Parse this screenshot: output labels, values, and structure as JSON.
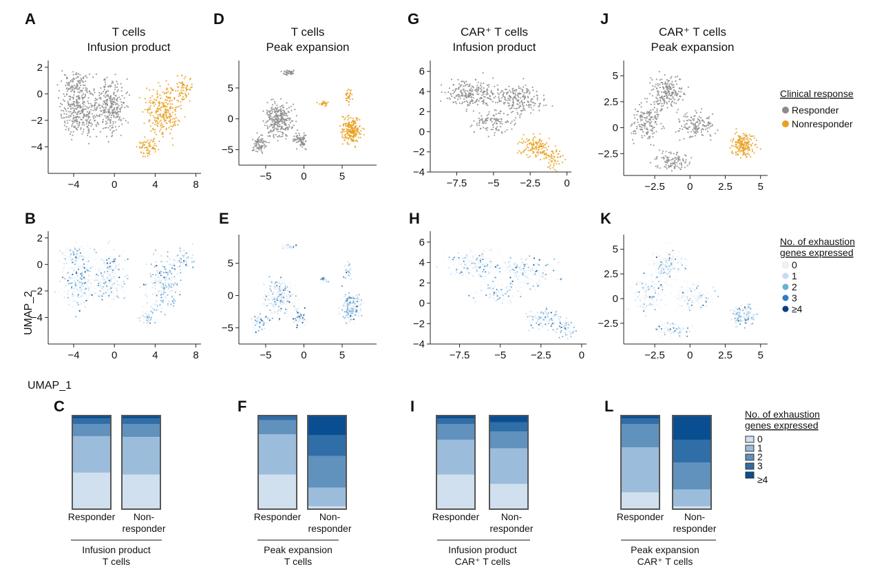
{
  "figure": {
    "umap_axis_labels": {
      "y": "UMAP_2",
      "x": "UMAP_1"
    },
    "clinical_legend": {
      "title": "Clinical response",
      "items": [
        {
          "label": "Responder",
          "color": "#8c8c8c"
        },
        {
          "label": "Nonresponder",
          "color": "#e8a020"
        }
      ]
    },
    "exhaustion_legend_umap": {
      "title_line1": "No. of exhaustion",
      "title_line2": "genes expressed",
      "items": [
        {
          "label": "0",
          "color": "#eef3f8"
        },
        {
          "label": "1",
          "color": "#c6dbef"
        },
        {
          "label": "2",
          "color": "#6baed6"
        },
        {
          "label": "3",
          "color": "#2f7ebf"
        },
        {
          "label": "≥4",
          "color": "#0b3d86"
        }
      ]
    },
    "exhaustion_legend_bars": {
      "title_line1": "No. of exhaustion",
      "title_line2": "genes expressed",
      "items": [
        {
          "label": "0",
          "color": "#d0e0ef"
        },
        {
          "label": "1",
          "color": "#9bbcda"
        },
        {
          "label": "2",
          "color": "#6191bd"
        },
        {
          "label": "3",
          "color": "#2f6ea7"
        },
        {
          "label": "≥4",
          "color": "#0a4e92"
        }
      ]
    }
  },
  "chart_data": [
    {
      "id": "A",
      "type": "scatter",
      "color_mode": "response",
      "title_line1": "T cells",
      "title_line2": "Infusion product",
      "xlim": [
        -6.5,
        8.5
      ],
      "ylim": [
        -6,
        2.3
      ],
      "x_ticks": [
        -4,
        0,
        4,
        8
      ],
      "x_tick_labels": [
        "−4",
        "0",
        "4",
        "8"
      ],
      "y_ticks": [
        2,
        0,
        -2,
        -4
      ],
      "y_tick_labels": [
        "2",
        "0",
        "−2",
        "−4"
      ]
    },
    {
      "id": "D",
      "type": "scatter",
      "color_mode": "response",
      "title_line1": "T cells",
      "title_line2": "Peak expansion",
      "xlim": [
        -8.5,
        9.5
      ],
      "ylim": [
        -7.5,
        9
      ],
      "x_ticks": [
        -5,
        0,
        5
      ],
      "x_tick_labels": [
        "−5",
        "0",
        "5"
      ],
      "y_ticks": [
        5,
        0,
        -5
      ],
      "y_tick_labels": [
        "5",
        "0",
        "−5"
      ]
    },
    {
      "id": "G",
      "type": "scatter",
      "color_mode": "response",
      "title_line1": "CAR⁺ T cells",
      "title_line2": "Infusion product",
      "xlim": [
        -9.3,
        0.3
      ],
      "ylim": [
        -4,
        6.8
      ],
      "x_ticks": [
        -7.5,
        -5,
        -2.5,
        0
      ],
      "x_tick_labels": [
        "−7.5",
        "−5",
        "−2.5",
        "0"
      ],
      "y_ticks": [
        6,
        4,
        2,
        0,
        -2,
        -4
      ],
      "y_tick_labels": [
        "6",
        "4",
        "2",
        "0",
        "−2",
        "−4"
      ]
    },
    {
      "id": "J",
      "type": "scatter",
      "color_mode": "response",
      "title_line1": "CAR⁺ T cells",
      "title_line2": "Peak expansion",
      "xlim": [
        -4.7,
        5.5
      ],
      "ylim": [
        -4.6,
        6.2
      ],
      "x_ticks": [
        -2.5,
        0,
        2.5,
        5
      ],
      "x_tick_labels": [
        "−2.5",
        "0",
        "2.5",
        "5"
      ],
      "y_ticks": [
        5,
        2.5,
        0,
        -2.5
      ],
      "y_tick_labels": [
        "5",
        "2.5",
        "0",
        "−2.5"
      ]
    },
    {
      "id": "B",
      "type": "scatter",
      "color_mode": "exhaustion",
      "xlim": [
        -6.5,
        8.5
      ],
      "ylim": [
        -6,
        2.3
      ],
      "x_ticks": [
        -4,
        0,
        4,
        8
      ],
      "x_tick_labels": [
        "−4",
        "0",
        "4",
        "8"
      ],
      "y_ticks": [
        2,
        0,
        -2,
        -4
      ],
      "y_tick_labels": [
        "2",
        "0",
        "−2",
        "−4"
      ]
    },
    {
      "id": "E",
      "type": "scatter",
      "color_mode": "exhaustion",
      "xlim": [
        -8.5,
        9.5
      ],
      "ylim": [
        -7.5,
        9
      ],
      "x_ticks": [
        -5,
        0,
        5
      ],
      "x_tick_labels": [
        "−5",
        "0",
        "5"
      ],
      "y_ticks": [
        5,
        0,
        -5
      ],
      "y_tick_labels": [
        "5",
        "0",
        "−5"
      ]
    },
    {
      "id": "H",
      "type": "scatter",
      "color_mode": "exhaustion",
      "xlim": [
        -9.3,
        0.3
      ],
      "ylim": [
        -4,
        6.8
      ],
      "x_ticks": [
        -7.5,
        -5,
        -2.5,
        0
      ],
      "x_tick_labels": [
        "−7.5",
        "−5",
        "−2.5",
        "0"
      ],
      "y_ticks": [
        6,
        4,
        2,
        0,
        -2,
        -4
      ],
      "y_tick_labels": [
        "6",
        "4",
        "2",
        "0",
        "−2",
        "−4"
      ]
    },
    {
      "id": "K",
      "type": "scatter",
      "color_mode": "exhaustion",
      "xlim": [
        -4.7,
        5.5
      ],
      "ylim": [
        -4.6,
        6.2
      ],
      "x_ticks": [
        -2.5,
        0,
        2.5,
        5
      ],
      "x_tick_labels": [
        "−2.5",
        "0",
        "2.5",
        "5"
      ],
      "y_ticks": [
        5,
        2.5,
        0,
        -2.5
      ],
      "y_tick_labels": [
        "5",
        "2.5",
        "0",
        "−2.5"
      ]
    },
    {
      "id": "C",
      "type": "bar",
      "stacked": true,
      "categories": [
        "Responder",
        "Non-responder"
      ],
      "category_label_lines": [
        [
          "Responder"
        ],
        [
          "Non-",
          "responder"
        ]
      ],
      "group_label_line1": "Infusion product",
      "group_label_line2": "T cells",
      "series": [
        {
          "name": "0",
          "values": [
            0.39,
            0.37
          ]
        },
        {
          "name": "1",
          "values": [
            0.39,
            0.4
          ]
        },
        {
          "name": "2",
          "values": [
            0.13,
            0.14
          ]
        },
        {
          "name": "3",
          "values": [
            0.06,
            0.06
          ]
        },
        {
          "name": "≥4",
          "values": [
            0.03,
            0.03
          ]
        }
      ]
    },
    {
      "id": "F",
      "type": "bar",
      "stacked": true,
      "categories": [
        "Responder",
        "Non-responder"
      ],
      "category_label_lines": [
        [
          "Responder"
        ],
        [
          "Non-",
          "responder"
        ]
      ],
      "group_label_line1": "Peak expansion",
      "group_label_line2": "T cells",
      "series": [
        {
          "name": "0",
          "values": [
            0.37,
            0.03
          ]
        },
        {
          "name": "1",
          "values": [
            0.43,
            0.2
          ]
        },
        {
          "name": "2",
          "values": [
            0.15,
            0.34
          ]
        },
        {
          "name": "3",
          "values": [
            0.04,
            0.22
          ]
        },
        {
          "name": "≥4",
          "values": [
            0.01,
            0.21
          ]
        }
      ]
    },
    {
      "id": "I",
      "type": "bar",
      "stacked": true,
      "categories": [
        "Responder",
        "Non-responder"
      ],
      "category_label_lines": [
        [
          "Responder"
        ],
        [
          "Non-",
          "responder"
        ]
      ],
      "group_label_line1": "Infusion product",
      "group_label_line2": "CAR⁺ T cells",
      "series": [
        {
          "name": "0",
          "values": [
            0.37,
            0.27
          ]
        },
        {
          "name": "1",
          "values": [
            0.37,
            0.38
          ]
        },
        {
          "name": "2",
          "values": [
            0.17,
            0.18
          ]
        },
        {
          "name": "3",
          "values": [
            0.06,
            0.1
          ]
        },
        {
          "name": "≥4",
          "values": [
            0.03,
            0.07
          ]
        }
      ]
    },
    {
      "id": "L",
      "type": "bar",
      "stacked": true,
      "categories": [
        "Responder",
        "Non-responder"
      ],
      "category_label_lines": [
        [
          "Responder"
        ],
        [
          "Non-",
          "responder"
        ]
      ],
      "group_label_line1": "Peak expansion",
      "group_label_line2": "CAR⁺ T cells",
      "series": [
        {
          "name": "0",
          "values": [
            0.18,
            0.03
          ]
        },
        {
          "name": "1",
          "values": [
            0.48,
            0.18
          ]
        },
        {
          "name": "2",
          "values": [
            0.25,
            0.29
          ]
        },
        {
          "name": "3",
          "values": [
            0.06,
            0.24
          ]
        },
        {
          "name": "≥4",
          "values": [
            0.03,
            0.26
          ]
        }
      ]
    }
  ]
}
